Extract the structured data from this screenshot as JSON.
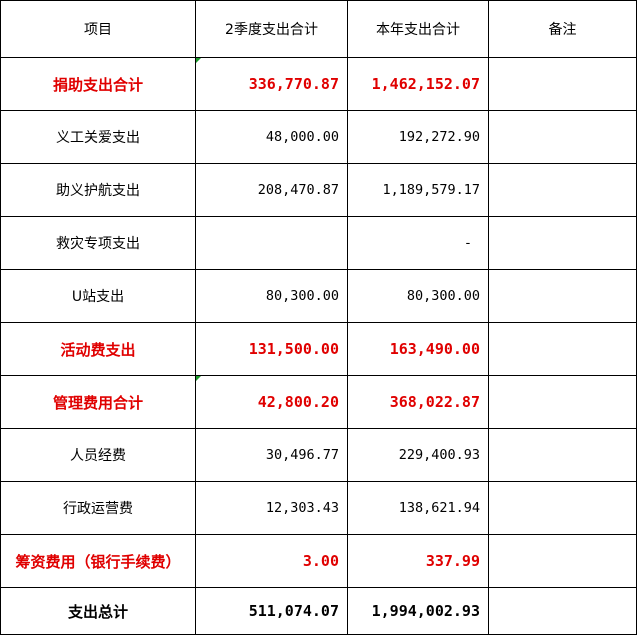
{
  "table": {
    "header": [
      "项目",
      "2季度支出合计",
      "本年支出合计",
      "备注"
    ],
    "rows": [
      {
        "item": "捐助支出合计",
        "q2": "336,770.87",
        "year": "1,462,152.07"
      },
      {
        "item": "义工关爱支出",
        "q2": "48,000.00",
        "year": "192,272.90"
      },
      {
        "item": "助义护航支出",
        "q2": "208,470.87",
        "year": "1,189,579.17"
      },
      {
        "item": "救灾专项支出",
        "year": "-"
      },
      {
        "item": "U站支出",
        "q2": "80,300.00",
        "year": "80,300.00"
      },
      {
        "item": "活动费支出",
        "q2": "131,500.00",
        "year": "163,490.00"
      },
      {
        "item": "管理费用合计",
        "q2": "42,800.20",
        "year": "368,022.87"
      },
      {
        "item": "人员经费",
        "q2": "30,496.77",
        "year": "229,400.93"
      },
      {
        "item": "行政运营费",
        "q2": "12,303.43",
        "year": "138,621.94"
      },
      {
        "item": "筹资费用（银行手续费）",
        "q2": "3.00",
        "year": "337.99"
      },
      {
        "item": "支出总计",
        "q2": "511,074.07",
        "year": "1,994,002.93"
      }
    ]
  }
}
